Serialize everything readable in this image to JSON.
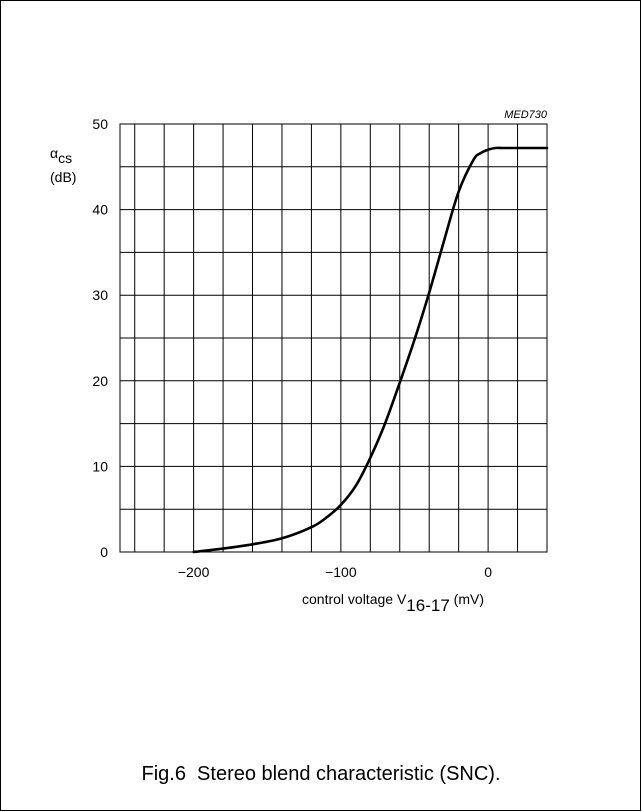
{
  "figure": {
    "code": "MED730",
    "caption": "Fig.6  Stereo blend characteristic (SNC)."
  },
  "chart_data": {
    "type": "line",
    "title": "",
    "ylabel_symbol": "α",
    "ylabel_subscript": "cs",
    "ylabel_unit": "(dB)",
    "xlabel_prefix": "control voltage V",
    "xlabel_subscript": "16-17",
    "xlabel_unit": " (mV)",
    "xlim": [
      -250,
      40
    ],
    "ylim": [
      0,
      50
    ],
    "xticks": [
      -200,
      -100,
      0
    ],
    "xtick_labels": [
      "−200",
      "−100",
      "0"
    ],
    "yticks": [
      0,
      10,
      20,
      30,
      40,
      50
    ],
    "ytick_labels": [
      "0",
      "10",
      "20",
      "30",
      "40",
      "50"
    ],
    "grid": true,
    "grid_step_x": 20,
    "grid_step_y": 5,
    "series": [
      {
        "x": [
          -200,
          -180,
          -160,
          -140,
          -120,
          -110,
          -100,
          -90,
          -80,
          -70,
          -60,
          -50,
          -40,
          -30,
          -20,
          -10,
          -5,
          0,
          5,
          10,
          20,
          40
        ],
        "y": [
          0,
          0.4,
          0.9,
          1.6,
          2.9,
          4.0,
          5.5,
          7.7,
          11,
          15,
          19.8,
          24.8,
          30.3,
          36.3,
          42.1,
          45.8,
          46.6,
          47,
          47.2,
          47.2,
          47.2,
          47.2
        ]
      }
    ]
  }
}
